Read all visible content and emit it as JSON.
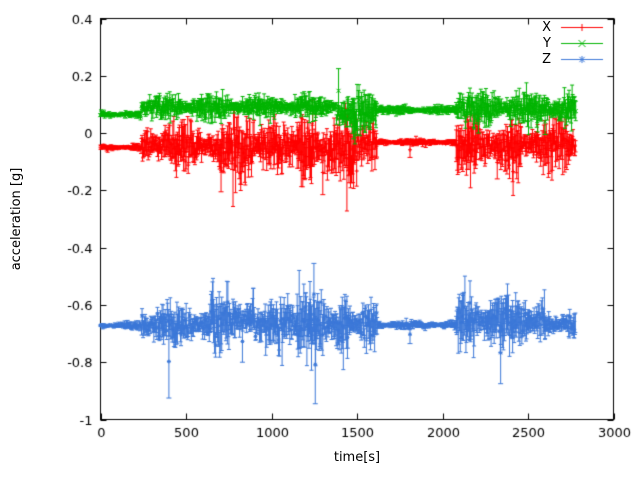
{
  "chart_data": {
    "type": "scatter",
    "title": "",
    "xlabel": "time[s]",
    "ylabel": "acceleration [g]",
    "xlim": [
      0,
      3000
    ],
    "ylim": [
      -1,
      0.4
    ],
    "x_ticks": [
      0,
      500,
      1000,
      1500,
      2000,
      2500,
      3000
    ],
    "y_ticks": [
      -1,
      -0.8,
      -0.6,
      -0.4,
      -0.2,
      0,
      0.2,
      0.4
    ],
    "grid": false,
    "legend_position": "top-right",
    "background": "#ffffff",
    "axis_color": "#000000",
    "series": [
      {
        "name": "X",
        "color": "#ff0000",
        "marker": "plus",
        "style": "yerrorbars",
        "segments": [
          {
            "t0": 0,
            "t1": 240,
            "mean": -0.05,
            "amp": 0.007
          },
          {
            "t0": 240,
            "t1": 300,
            "mean": -0.042,
            "amp": 0.028
          },
          {
            "t0": 300,
            "t1": 640,
            "mean": -0.045,
            "amp": 0.045
          },
          {
            "t0": 640,
            "t1": 900,
            "mean": -0.055,
            "amp": 0.062
          },
          {
            "t0": 900,
            "t1": 1150,
            "mean": -0.042,
            "amp": 0.048
          },
          {
            "t0": 1150,
            "t1": 1500,
            "mean": -0.06,
            "amp": 0.068
          },
          {
            "t0": 1500,
            "t1": 1620,
            "mean": -0.042,
            "amp": 0.038
          },
          {
            "t0": 1620,
            "t1": 2080,
            "mean": -0.032,
            "amp": 0.007
          },
          {
            "t0": 2080,
            "t1": 2460,
            "mean": -0.045,
            "amp": 0.055
          },
          {
            "t0": 2460,
            "t1": 2780,
            "mean": -0.04,
            "amp": 0.048
          }
        ],
        "spikes": [
          {
            "t": 705,
            "v": -0.205
          },
          {
            "t": 1240,
            "v": 0.115
          },
          {
            "t": 1300,
            "v": -0.215
          },
          {
            "t": 1810,
            "v": -0.085
          },
          {
            "t": 2320,
            "v": -0.16
          }
        ]
      },
      {
        "name": "Y",
        "color": "#00b400",
        "marker": "cross",
        "style": "yerrorbars",
        "segments": [
          {
            "t0": 0,
            "t1": 240,
            "mean": 0.065,
            "amp": 0.007
          },
          {
            "t0": 240,
            "t1": 1380,
            "mean": 0.09,
            "amp": 0.024
          },
          {
            "t0": 1380,
            "t1": 1620,
            "mean": 0.07,
            "amp": 0.045
          },
          {
            "t0": 1620,
            "t1": 2080,
            "mean": 0.08,
            "amp": 0.009
          },
          {
            "t0": 2080,
            "t1": 2780,
            "mean": 0.085,
            "amp": 0.034
          }
        ],
        "spikes": [
          {
            "t": 1392,
            "v": 0.225
          },
          {
            "t": 1480,
            "v": -0.02
          },
          {
            "t": 2210,
            "v": 0.0
          },
          {
            "t": 2600,
            "v": -0.005
          }
        ]
      },
      {
        "name": "Z",
        "color": "#3c78d8",
        "marker": "asterisk",
        "style": "yerrorbars",
        "segments": [
          {
            "t0": 0,
            "t1": 240,
            "mean": -0.672,
            "amp": 0.007
          },
          {
            "t0": 240,
            "t1": 640,
            "mean": -0.67,
            "amp": 0.042
          },
          {
            "t0": 640,
            "t1": 900,
            "mean": -0.655,
            "amp": 0.055
          },
          {
            "t0": 900,
            "t1": 1150,
            "mean": -0.668,
            "amp": 0.048
          },
          {
            "t0": 1150,
            "t1": 1450,
            "mean": -0.67,
            "amp": 0.07
          },
          {
            "t0": 1450,
            "t1": 1620,
            "mean": -0.668,
            "amp": 0.048
          },
          {
            "t0": 1620,
            "t1": 2080,
            "mean": -0.67,
            "amp": 0.009
          },
          {
            "t0": 2080,
            "t1": 2600,
            "mean": -0.66,
            "amp": 0.055
          },
          {
            "t0": 2600,
            "t1": 2780,
            "mean": -0.668,
            "amp": 0.028
          }
        ],
        "spikes": [
          {
            "t": 400,
            "v": -0.925
          },
          {
            "t": 830,
            "v": -0.8
          },
          {
            "t": 1248,
            "v": -0.455
          },
          {
            "t": 1256,
            "v": -0.945
          },
          {
            "t": 1810,
            "v": -0.735
          },
          {
            "t": 2340,
            "v": -0.875
          }
        ]
      }
    ]
  }
}
